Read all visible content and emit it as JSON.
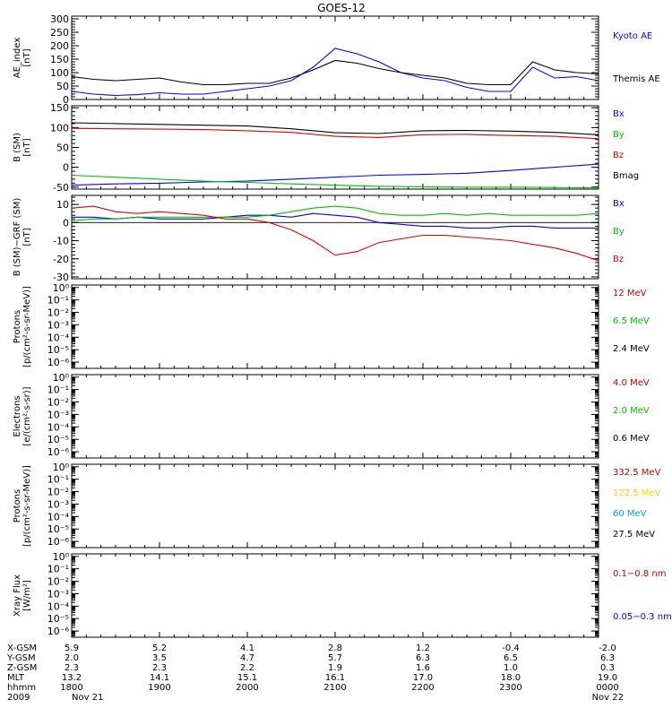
{
  "title": "GOES-12",
  "panels": [
    {
      "id": "ae",
      "ylabel": [
        "AE_index",
        "[nT]"
      ],
      "ticks": [
        "0",
        "50",
        "100",
        "150",
        "200",
        "250",
        "300"
      ],
      "tick_values": [
        0,
        50,
        100,
        150,
        200,
        250,
        300
      ],
      "ylim": [
        0,
        310
      ],
      "log": false,
      "legend": [
        {
          "text": "Kyoto AE",
          "color": "#0000ff"
        },
        {
          "text": "Themis AE",
          "color": "#000000"
        }
      ]
    },
    {
      "id": "b",
      "ylabel": [
        "B (SM)",
        "[nT]"
      ],
      "ticks": [
        "-50",
        "0",
        "50",
        "100",
        "150"
      ],
      "tick_values": [
        -50,
        0,
        50,
        100,
        150
      ],
      "ylim": [
        -55,
        155
      ],
      "log": false,
      "legend": [
        {
          "text": "Bx",
          "color": "#0000ff"
        },
        {
          "text": "By",
          "color": "#00c000"
        },
        {
          "text": "Bz",
          "color": "#e00000"
        },
        {
          "text": "Bmag",
          "color": "#000000"
        }
      ]
    },
    {
      "id": "dbb",
      "ylabel": [
        "B (SM)−GRF (SM)",
        "[nT]"
      ],
      "ticks": [
        "-30",
        "-20",
        "-10",
        "0",
        "10"
      ],
      "tick_values": [
        -30,
        -20,
        -10,
        0,
        10
      ],
      "ylim": [
        -31,
        15
      ],
      "log": false,
      "legend": [
        {
          "text": "Bx",
          "color": "#0000ff"
        },
        {
          "text": "By",
          "color": "#00c000"
        },
        {
          "text": "Bz",
          "color": "#e00000"
        }
      ]
    },
    {
      "id": "protons_hi",
      "ylabel": [
        "Protons",
        "[p/(cm²-s-sr-MeV)]"
      ],
      "ticks": [
        "10⁻⁶",
        "10⁻⁵",
        "10⁻⁴",
        "10⁻³",
        "10⁻²",
        "10⁻¹",
        "10⁰"
      ],
      "tick_values": [
        -6,
        -5,
        -4,
        -3,
        -2,
        -1,
        0
      ],
      "ylim": [
        -6.5,
        0.2
      ],
      "log": true,
      "legend": [
        {
          "text": "12 MeV",
          "color": "#c00000"
        },
        {
          "text": "6.5 MeV",
          "color": "#00c000"
        },
        {
          "text": "2.4 MeV",
          "color": "#000000"
        }
      ]
    },
    {
      "id": "electrons",
      "ylabel": [
        "Electrons",
        "[e/(cm²-s-sr)]"
      ],
      "ticks": [
        "10⁻⁶",
        "10⁻⁵",
        "10⁻⁴",
        "10⁻³",
        "10⁻²",
        "10⁻¹",
        "10⁰"
      ],
      "tick_values": [
        -6,
        -5,
        -4,
        -3,
        -2,
        -1,
        0
      ],
      "ylim": [
        -6.5,
        0.2
      ],
      "log": true,
      "legend": [
        {
          "text": "4.0 MeV",
          "color": "#c00000"
        },
        {
          "text": "2.0 MeV",
          "color": "#00c000"
        },
        {
          "text": "0.6 MeV",
          "color": "#000000"
        }
      ]
    },
    {
      "id": "protons_lo",
      "ylabel": [
        "Protons",
        "[p/(cm²-s-sr-MeV)]"
      ],
      "ticks": [
        "10⁻⁶",
        "10⁻⁵",
        "10⁻⁴",
        "10⁻³",
        "10⁻²",
        "10⁻¹",
        "10⁰"
      ],
      "tick_values": [
        -6,
        -5,
        -4,
        -3,
        -2,
        -1,
        0
      ],
      "ylim": [
        -6.5,
        0.2
      ],
      "log": true,
      "legend": [
        {
          "text": "332.5 MeV",
          "color": "#c00000"
        },
        {
          "text": "122.5 MeV",
          "color": "#ffd000"
        },
        {
          "text": "60 MeV",
          "color": "#00a0e0"
        },
        {
          "text": "27.5 MeV",
          "color": "#000000"
        }
      ]
    },
    {
      "id": "xray",
      "ylabel": [
        "Xray  Flux",
        "[W/m²]"
      ],
      "ticks": [
        "10⁻⁶",
        "10⁻⁵",
        "10⁻⁴",
        "10⁻³",
        "10⁻²",
        "10⁻¹",
        "10⁰"
      ],
      "tick_values": [
        -6,
        -5,
        -4,
        -3,
        -2,
        -1,
        0
      ],
      "ylim": [
        -6.5,
        0.2
      ],
      "log": true,
      "legend": [
        {
          "text": "0.1−0.8 nm",
          "color": "#c00000"
        },
        {
          "text": "0.05−0.3 nm",
          "color": "#0000ff"
        }
      ]
    }
  ],
  "footer": {
    "row_labels": [
      "X-GSM",
      "Y-GSM",
      "Z-GSM",
      "MLT",
      "hhmm",
      "2009"
    ],
    "columns": [
      [
        "5.9",
        "2.0",
        "2.3",
        "13.2",
        "1800",
        "Nov 21"
      ],
      [
        "5.2",
        "3.5",
        "2.3",
        "14.1",
        "1900",
        ""
      ],
      [
        "4.1",
        "4.7",
        "2.2",
        "15.1",
        "2000",
        ""
      ],
      [
        "2.8",
        "5.7",
        "1.9",
        "16.1",
        "2100",
        ""
      ],
      [
        "1.2",
        "6.3",
        "1.6",
        "17.0",
        "2200",
        ""
      ],
      [
        "-0.4",
        "6.5",
        "1.0",
        "18.0",
        "2300",
        ""
      ],
      [
        "-2.0",
        "6.3",
        "0.3",
        "19.0",
        "0000",
        "Nov 22"
      ]
    ]
  },
  "chart_data": {
    "type": "line",
    "title": "GOES-12",
    "x_unit": "UT hour (2009 Nov 21 18:00 to Nov 22 00:00)",
    "xlim": [
      18,
      24
    ],
    "x_ticks": [
      "1800",
      "1900",
      "2000",
      "2100",
      "2200",
      "2300",
      "0000"
    ],
    "panels": [
      {
        "id": "ae",
        "ylim": [
          0,
          310
        ],
        "x": [
          18.0,
          18.25,
          18.5,
          18.75,
          19.0,
          19.25,
          19.5,
          19.75,
          20.0,
          20.25,
          20.5,
          20.75,
          21.0,
          21.25,
          21.5,
          21.75,
          22.0,
          22.25,
          22.5,
          22.75,
          23.0,
          23.25,
          23.5,
          23.75,
          24.0
        ],
        "series": [
          {
            "name": "Kyoto AE",
            "color": "#0000ff",
            "values": [
              30,
              20,
              15,
              18,
              25,
              20,
              20,
              30,
              40,
              50,
              70,
              120,
              190,
              170,
              140,
              100,
              80,
              70,
              45,
              30,
              30,
              120,
              80,
              85,
              70
            ]
          },
          {
            "name": "Themis AE",
            "color": "#000000",
            "values": [
              85,
              75,
              70,
              75,
              80,
              65,
              55,
              55,
              60,
              60,
              80,
              110,
              145,
              135,
              115,
              100,
              90,
              80,
              60,
              55,
              55,
              140,
              110,
              100,
              95
            ]
          }
        ]
      },
      {
        "id": "b",
        "ylim": [
          -55,
          155
        ],
        "x": [
          18.0,
          18.5,
          19.0,
          19.5,
          20.0,
          20.5,
          21.0,
          21.5,
          22.0,
          22.5,
          23.0,
          23.5,
          24.0
        ],
        "series": [
          {
            "name": "Bx",
            "color": "#0000ff",
            "values": [
              -45,
              -42,
              -40,
              -37,
              -35,
              -30,
              -25,
              -20,
              -18,
              -15,
              -8,
              0,
              8
            ]
          },
          {
            "name": "By",
            "color": "#00c000",
            "values": [
              -20,
              -25,
              -30,
              -35,
              -38,
              -42,
              -45,
              -48,
              -49,
              -50,
              -50,
              -51,
              -52
            ]
          },
          {
            "name": "Bz",
            "color": "#e00000",
            "values": [
              98,
              97,
              96,
              95,
              92,
              88,
              78,
              75,
              82,
              83,
              80,
              78,
              72
            ]
          },
          {
            "name": "Bmag",
            "color": "#000000",
            "values": [
              112,
              110,
              108,
              106,
              104,
              97,
              87,
              85,
              92,
              93,
              91,
              88,
              82
            ]
          }
        ]
      },
      {
        "id": "dbb",
        "ylim": [
          -31,
          15
        ],
        "x": [
          18.0,
          18.25,
          18.5,
          18.75,
          19.0,
          19.25,
          19.5,
          19.75,
          20.0,
          20.25,
          20.5,
          20.75,
          21.0,
          21.25,
          21.5,
          21.75,
          22.0,
          22.25,
          22.5,
          22.75,
          23.0,
          23.25,
          23.5,
          23.75,
          24.0
        ],
        "series": [
          {
            "name": "Bx",
            "color": "#0000ff",
            "values": [
              3,
              3,
              2,
              3,
              2,
              2,
              2,
              3,
              4,
              4,
              3,
              5,
              4,
              3,
              0,
              -1,
              -2,
              -2,
              -3,
              -3,
              -2,
              -2,
              -3,
              -3,
              -3
            ]
          },
          {
            "name": "By",
            "color": "#00c000",
            "values": [
              1,
              2,
              2,
              3,
              3,
              3,
              3,
              3,
              3,
              4,
              6,
              8,
              9,
              8,
              5,
              4,
              4,
              5,
              4,
              5,
              4,
              4,
              4,
              4,
              5
            ]
          },
          {
            "name": "Bz",
            "color": "#e00000",
            "values": [
              8,
              9,
              6,
              5,
              6,
              5,
              4,
              2,
              2,
              0,
              -4,
              -10,
              -18,
              -16,
              -11,
              -9,
              -7,
              -7,
              -8,
              -9,
              -10,
              -12,
              -14,
              -17,
              -21
            ]
          }
        ]
      }
    ],
    "footer_rows": {
      "X-GSM": [
        5.9,
        5.2,
        4.1,
        2.8,
        1.2,
        -0.4,
        -2.0
      ],
      "Y-GSM": [
        2.0,
        3.5,
        4.7,
        5.7,
        6.3,
        6.5,
        6.3
      ],
      "Z-GSM": [
        2.3,
        2.3,
        2.2,
        1.9,
        1.6,
        1.0,
        0.3
      ],
      "MLT": [
        13.2,
        14.1,
        15.1,
        16.1,
        17.0,
        18.0,
        19.0
      ]
    }
  }
}
